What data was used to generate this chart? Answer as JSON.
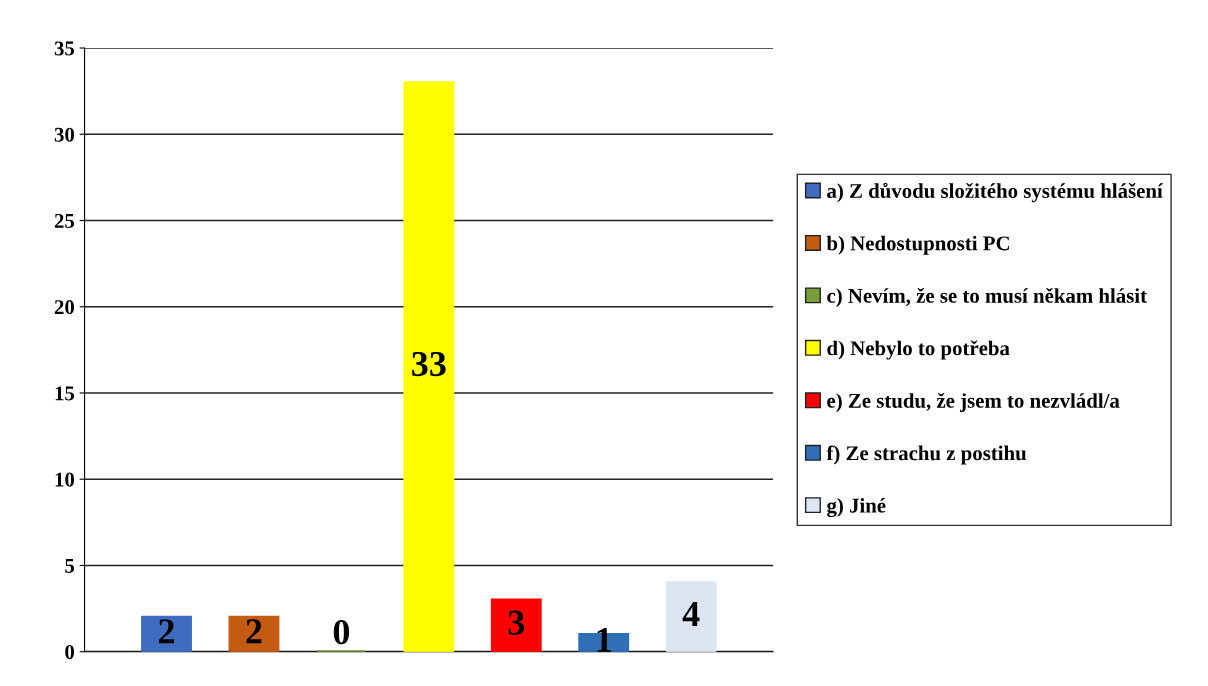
{
  "chart_data": {
    "type": "bar",
    "categories": [
      null
    ],
    "series": [
      {
        "name": "a) Z důvodu složitého systému hlášení",
        "color": "#3f6cbf",
        "values": [
          2
        ]
      },
      {
        "name": "b) Nedostupnosti PC",
        "color": "#c55a11",
        "values": [
          2
        ]
      },
      {
        "name": "c) Nevím, že se to musí někam hlásit",
        "color": "#77a03c",
        "values": [
          0
        ]
      },
      {
        "name": "d) Nebylo to potřeba",
        "color": "#ffff00",
        "values": [
          33
        ]
      },
      {
        "name": "e) Ze studu, že jsem to nezvládl/a",
        "color": "#ff0000",
        "values": [
          3
        ]
      },
      {
        "name": "f) Ze strachu z postihu",
        "color": "#2e6fb5",
        "values": [
          1
        ]
      },
      {
        "name": "g) Jiné",
        "color": "#dce6f2",
        "values": [
          4
        ]
      }
    ],
    "ylim": [
      0,
      35
    ],
    "yticks": [
      0,
      5,
      10,
      15,
      20,
      25,
      30,
      35
    ],
    "grid": "y",
    "legend": "right",
    "data_labels": true
  }
}
